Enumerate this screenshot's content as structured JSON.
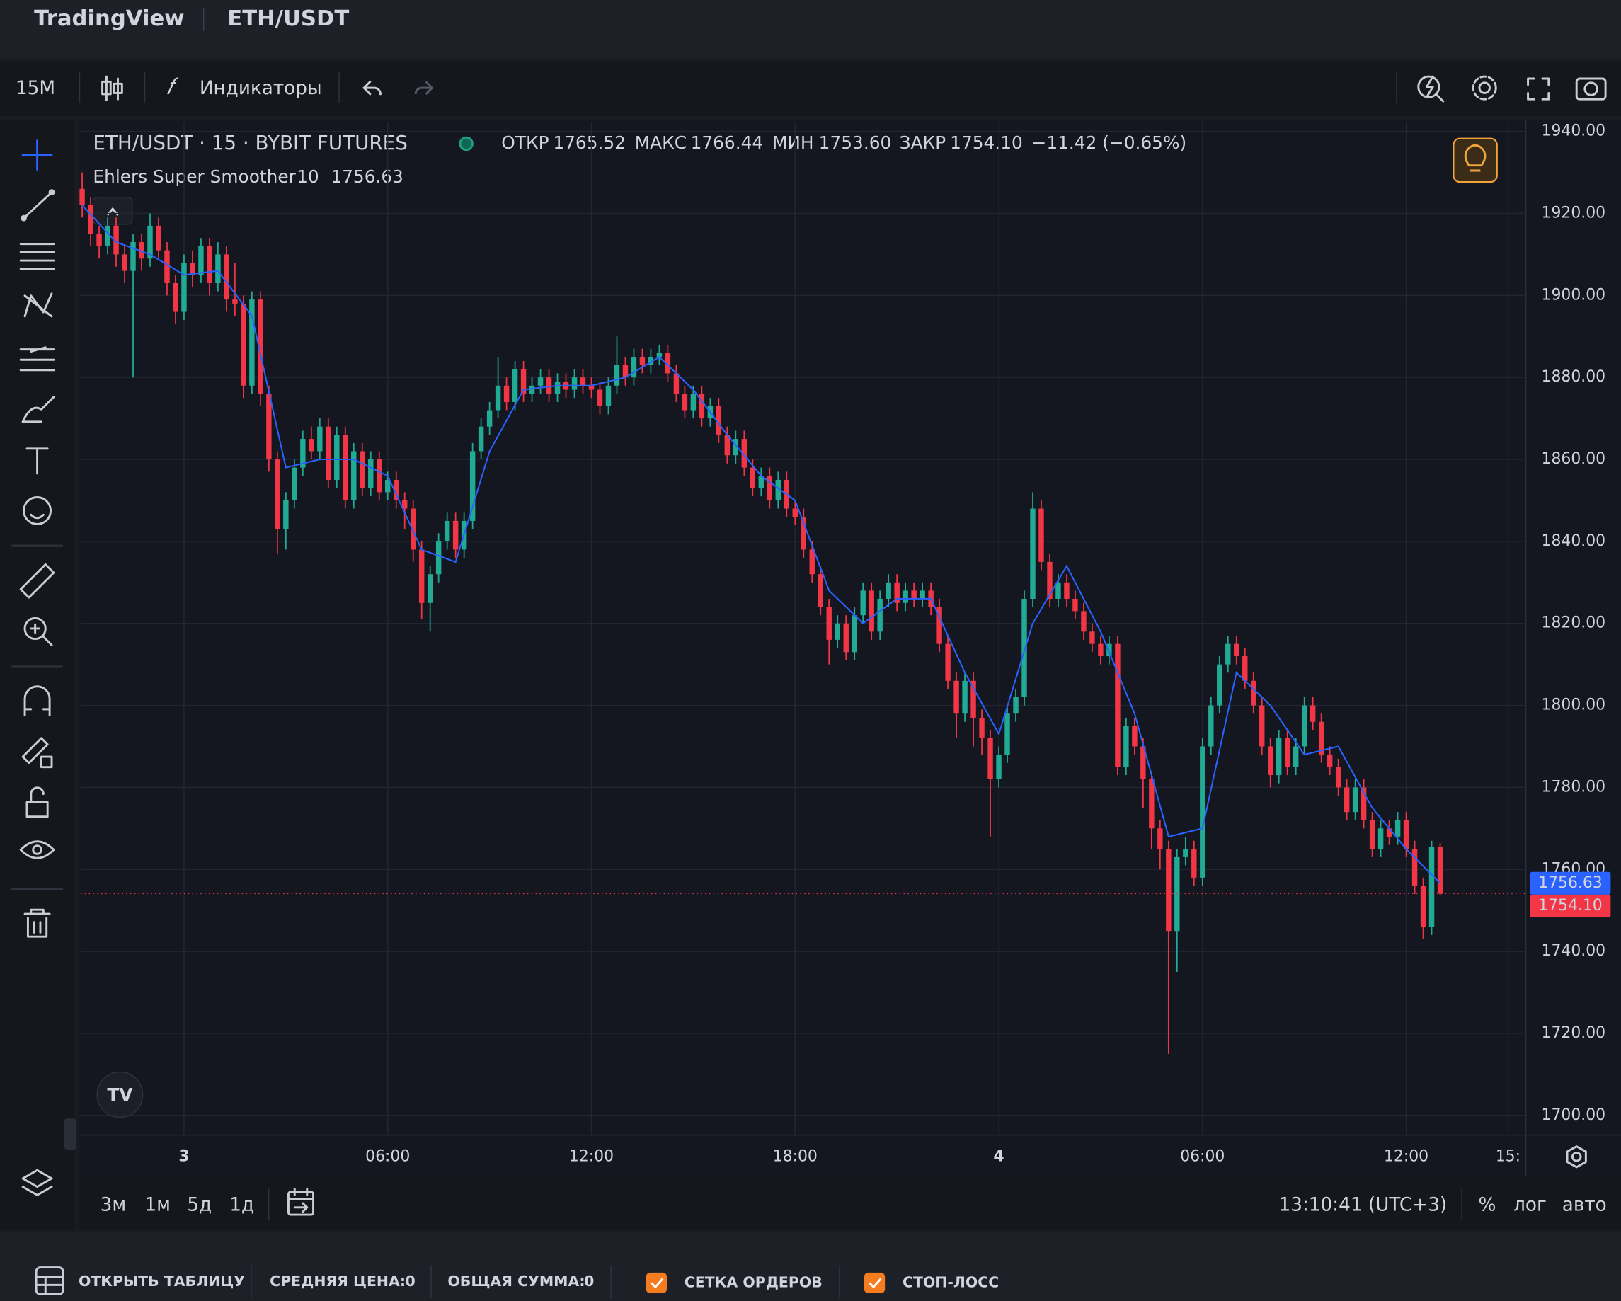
{
  "app": {
    "brand": "TradingView",
    "symbol": "ETH/USDT",
    "interval": "15M",
    "indicators_button": "Индикаторы"
  },
  "chart_data": {
    "type": "candlestick",
    "title": "ETH/USDT · 15 · BYBIT FUTURES",
    "legend_keys": [
      "ОТКР",
      "МАКС",
      "МИН",
      "ЗАКР"
    ],
    "legend_values": [
      "1765.52",
      "1766.44",
      "1753.60",
      "1754.10"
    ],
    "change": "−11.42 (−0.65%)",
    "up_color": "#22ab94",
    "down_color": "#f23645",
    "close_label": "1754.10",
    "xlim": [
      -12.18,
      158.1
    ],
    "ylim": [
      1695.2,
      1942.3
    ],
    "grid": true,
    "xticks": [
      {
        "value": 0,
        "label": "3"
      },
      {
        "value": 24,
        "label": "06:00"
      },
      {
        "value": 48,
        "label": "12:00"
      },
      {
        "value": 72,
        "label": "18:00"
      },
      {
        "value": 96,
        "label": "4"
      },
      {
        "value": 120,
        "label": "06:00"
      },
      {
        "value": 144,
        "label": "12:00"
      },
      {
        "value": 156,
        "label": "15:"
      }
    ],
    "yticks": [
      {
        "value": 1700,
        "label": "1700.00"
      },
      {
        "value": 1720,
        "label": "1720.00"
      },
      {
        "value": 1740,
        "label": "1740.00"
      },
      {
        "value": 1760,
        "label": "1760.00"
      },
      {
        "value": 1780,
        "label": "1780.00"
      },
      {
        "value": 1800,
        "label": "1800.00"
      },
      {
        "value": 1820,
        "label": "1820.00"
      },
      {
        "value": 1840,
        "label": "1840.00"
      },
      {
        "value": 1860,
        "label": "1860.00"
      },
      {
        "value": 1880,
        "label": "1880.00"
      },
      {
        "value": 1900,
        "label": "1900.00"
      },
      {
        "value": 1920,
        "label": "1920.00"
      },
      {
        "value": 1940,
        "label": "1940.00"
      }
    ],
    "x": [
      -12,
      -11,
      -10,
      -9,
      -8,
      -7,
      -6,
      -5,
      -4,
      -3,
      -2,
      -1,
      0,
      1,
      2,
      3,
      4,
      5,
      6,
      7,
      8,
      9,
      10,
      11,
      12,
      13,
      14,
      15,
      16,
      17,
      18,
      19,
      20,
      21,
      22,
      23,
      24,
      25,
      26,
      27,
      28,
      29,
      30,
      31,
      32,
      33,
      34,
      35,
      36,
      37,
      38,
      39,
      40,
      41,
      42,
      43,
      44,
      45,
      46,
      47,
      48,
      49,
      50,
      51,
      52,
      53,
      54,
      55,
      56,
      57,
      58,
      59,
      60,
      61,
      62,
      63,
      64,
      65,
      66,
      67,
      68,
      69,
      70,
      71,
      72,
      73,
      74,
      75,
      76,
      77,
      78,
      79,
      80,
      81,
      82,
      83,
      84,
      85,
      86,
      87,
      88,
      89,
      90,
      91,
      92,
      93,
      94,
      95,
      96,
      97,
      98,
      99,
      100,
      101,
      102,
      103,
      104,
      105,
      106,
      107,
      108,
      109,
      110,
      111,
      112,
      113,
      114,
      115,
      116,
      117,
      118,
      119,
      120,
      121,
      122,
      123,
      124,
      125,
      126,
      127,
      128,
      129,
      130,
      131,
      132,
      133,
      134,
      135,
      136,
      137,
      138,
      139,
      140,
      141,
      142,
      143,
      144,
      145,
      146,
      147,
      148
    ],
    "candles": [
      [
        1926,
        1930,
        1919,
        1922
      ],
      [
        1922,
        1924,
        1912,
        1915
      ],
      [
        1915,
        1917,
        1909,
        1912
      ],
      [
        1912,
        1919,
        1910,
        1917
      ],
      [
        1917,
        1919,
        1907,
        1910
      ],
      [
        1910,
        1912,
        1903,
        1906
      ],
      [
        1906,
        1915,
        1880,
        1913
      ],
      [
        1913,
        1915,
        1906,
        1909
      ],
      [
        1909,
        1920,
        1907,
        1917
      ],
      [
        1917,
        1919,
        1909,
        1911
      ],
      [
        1911,
        1913,
        1900,
        1903
      ],
      [
        1903,
        1905,
        1893,
        1896
      ],
      [
        1896,
        1910,
        1894,
        1908
      ],
      [
        1908,
        1911,
        1902,
        1905
      ],
      [
        1905,
        1914,
        1903,
        1912
      ],
      [
        1912,
        1914,
        1900,
        1903
      ],
      [
        1903,
        1913,
        1901,
        1910
      ],
      [
        1910,
        1912,
        1896,
        1899
      ],
      [
        1899,
        1908,
        1895,
        1898
      ],
      [
        1898,
        1900,
        1875,
        1878
      ],
      [
        1878,
        1901,
        1876,
        1899
      ],
      [
        1899,
        1901,
        1873,
        1876
      ],
      [
        1876,
        1878,
        1857,
        1860
      ],
      [
        1860,
        1862,
        1837,
        1843
      ],
      [
        1843,
        1852,
        1838,
        1850
      ],
      [
        1850,
        1860,
        1848,
        1858
      ],
      [
        1858,
        1867,
        1856,
        1865
      ],
      [
        1865,
        1868,
        1860,
        1862
      ],
      [
        1862,
        1870,
        1860,
        1868
      ],
      [
        1868,
        1870,
        1853,
        1855
      ],
      [
        1855,
        1868,
        1853,
        1866
      ],
      [
        1866,
        1868,
        1848,
        1850
      ],
      [
        1850,
        1864,
        1848,
        1862
      ],
      [
        1862,
        1864,
        1851,
        1853
      ],
      [
        1853,
        1862,
        1851,
        1860
      ],
      [
        1860,
        1862,
        1850,
        1852
      ],
      [
        1852,
        1857,
        1850,
        1855
      ],
      [
        1855,
        1857,
        1848,
        1850
      ],
      [
        1850,
        1852,
        1843,
        1848
      ],
      [
        1848,
        1850,
        1835,
        1838
      ],
      [
        1838,
        1840,
        1821,
        1825
      ],
      [
        1825,
        1834,
        1818,
        1832
      ],
      [
        1832,
        1842,
        1830,
        1840
      ],
      [
        1840,
        1847,
        1838,
        1845
      ],
      [
        1845,
        1847,
        1836,
        1838
      ],
      [
        1838,
        1847,
        1836,
        1845
      ],
      [
        1845,
        1864,
        1843,
        1862
      ],
      [
        1862,
        1870,
        1860,
        1868
      ],
      [
        1868,
        1874,
        1866,
        1872
      ],
      [
        1872,
        1885,
        1870,
        1878
      ],
      [
        1878,
        1880,
        1872,
        1874
      ],
      [
        1874,
        1884,
        1872,
        1882
      ],
      [
        1882,
        1884,
        1874,
        1876
      ],
      [
        1876,
        1880,
        1874,
        1878
      ],
      [
        1878,
        1882,
        1876,
        1880
      ],
      [
        1880,
        1882,
        1874,
        1876
      ],
      [
        1876,
        1881,
        1874,
        1879
      ],
      [
        1879,
        1881,
        1875,
        1877
      ],
      [
        1877,
        1882,
        1875,
        1880
      ],
      [
        1880,
        1882,
        1876,
        1878
      ],
      [
        1878,
        1880,
        1875,
        1877
      ],
      [
        1877,
        1879,
        1871,
        1873
      ],
      [
        1873,
        1880,
        1871,
        1878
      ],
      [
        1878,
        1890,
        1876,
        1883
      ],
      [
        1883,
        1885,
        1878,
        1880
      ],
      [
        1880,
        1887,
        1878,
        1885
      ],
      [
        1885,
        1887,
        1881,
        1883
      ],
      [
        1883,
        1887,
        1881,
        1885
      ],
      [
        1885,
        1888,
        1883,
        1886
      ],
      [
        1886,
        1888,
        1879,
        1881
      ],
      [
        1881,
        1883,
        1874,
        1876
      ],
      [
        1876,
        1878,
        1870,
        1872
      ],
      [
        1872,
        1878,
        1870,
        1876
      ],
      [
        1876,
        1878,
        1868,
        1870
      ],
      [
        1870,
        1875,
        1868,
        1873
      ],
      [
        1873,
        1875,
        1864,
        1866
      ],
      [
        1866,
        1868,
        1859,
        1861
      ],
      [
        1861,
        1867,
        1859,
        1865
      ],
      [
        1865,
        1867,
        1856,
        1858
      ],
      [
        1858,
        1860,
        1851,
        1853
      ],
      [
        1853,
        1858,
        1851,
        1856
      ],
      [
        1856,
        1858,
        1848,
        1850
      ],
      [
        1850,
        1857,
        1848,
        1855
      ],
      [
        1855,
        1857,
        1846,
        1848
      ],
      [
        1848,
        1850,
        1844,
        1846
      ],
      [
        1846,
        1848,
        1836,
        1838
      ],
      [
        1838,
        1840,
        1830,
        1832
      ],
      [
        1832,
        1834,
        1822,
        1824
      ],
      [
        1824,
        1826,
        1810,
        1816
      ],
      [
        1816,
        1822,
        1814,
        1820
      ],
      [
        1820,
        1822,
        1811,
        1813
      ],
      [
        1813,
        1824,
        1811,
        1822
      ],
      [
        1822,
        1830,
        1820,
        1828
      ],
      [
        1828,
        1830,
        1816,
        1818
      ],
      [
        1818,
        1828,
        1816,
        1826
      ],
      [
        1826,
        1832,
        1824,
        1830
      ],
      [
        1830,
        1832,
        1823,
        1825
      ],
      [
        1825,
        1830,
        1823,
        1828
      ],
      [
        1828,
        1830,
        1824,
        1826
      ],
      [
        1826,
        1830,
        1824,
        1828
      ],
      [
        1828,
        1830,
        1822,
        1824
      ],
      [
        1824,
        1826,
        1813,
        1815
      ],
      [
        1815,
        1817,
        1804,
        1806
      ],
      [
        1806,
        1808,
        1792,
        1798
      ],
      [
        1798,
        1808,
        1796,
        1806
      ],
      [
        1806,
        1808,
        1790,
        1797
      ],
      [
        1797,
        1799,
        1788,
        1792
      ],
      [
        1792,
        1794,
        1768,
        1782
      ],
      [
        1782,
        1790,
        1780,
        1788
      ],
      [
        1788,
        1800,
        1786,
        1798
      ],
      [
        1798,
        1804,
        1796,
        1802
      ],
      [
        1802,
        1828,
        1800,
        1826
      ],
      [
        1826,
        1852,
        1824,
        1848
      ],
      [
        1848,
        1850,
        1833,
        1835
      ],
      [
        1835,
        1837,
        1824,
        1826
      ],
      [
        1826,
        1832,
        1824,
        1830
      ],
      [
        1830,
        1832,
        1824,
        1826
      ],
      [
        1826,
        1828,
        1821,
        1823
      ],
      [
        1823,
        1825,
        1816,
        1818
      ],
      [
        1818,
        1820,
        1813,
        1815
      ],
      [
        1815,
        1817,
        1810,
        1812
      ],
      [
        1812,
        1817,
        1810,
        1815
      ],
      [
        1815,
        1817,
        1783,
        1785
      ],
      [
        1785,
        1797,
        1783,
        1795
      ],
      [
        1795,
        1797,
        1788,
        1790
      ],
      [
        1790,
        1792,
        1775,
        1782
      ],
      [
        1782,
        1784,
        1765,
        1770
      ],
      [
        1770,
        1772,
        1760,
        1765
      ],
      [
        1765,
        1767,
        1715,
        1745
      ],
      [
        1745,
        1765,
        1735,
        1763
      ],
      [
        1763,
        1768,
        1761,
        1765
      ],
      [
        1765,
        1767,
        1756,
        1758
      ],
      [
        1758,
        1792,
        1756,
        1790
      ],
      [
        1790,
        1802,
        1788,
        1800
      ],
      [
        1800,
        1812,
        1798,
        1810
      ],
      [
        1810,
        1817,
        1808,
        1815
      ],
      [
        1815,
        1817,
        1810,
        1812
      ],
      [
        1812,
        1814,
        1804,
        1806
      ],
      [
        1806,
        1808,
        1798,
        1800
      ],
      [
        1800,
        1802,
        1788,
        1790
      ],
      [
        1790,
        1792,
        1780,
        1783
      ],
      [
        1783,
        1794,
        1781,
        1792
      ],
      [
        1792,
        1794,
        1783,
        1785
      ],
      [
        1785,
        1792,
        1783,
        1790
      ],
      [
        1790,
        1802,
        1788,
        1800
      ],
      [
        1800,
        1802,
        1794,
        1796
      ],
      [
        1796,
        1798,
        1786,
        1788
      ],
      [
        1788,
        1790,
        1783,
        1785
      ],
      [
        1785,
        1787,
        1778,
        1780
      ],
      [
        1780,
        1782,
        1772,
        1774
      ],
      [
        1774,
        1782,
        1772,
        1780
      ],
      [
        1780,
        1782,
        1770,
        1772
      ],
      [
        1772,
        1774,
        1763,
        1765
      ],
      [
        1765,
        1772,
        1763,
        1770
      ],
      [
        1770,
        1772,
        1766,
        1768
      ],
      [
        1768,
        1774,
        1766,
        1772
      ],
      [
        1772,
        1774,
        1763,
        1765
      ],
      [
        1765,
        1767,
        1754,
        1756
      ],
      [
        1756,
        1758,
        1743,
        1746
      ],
      [
        1746,
        1767,
        1744,
        1765.52
      ],
      [
        1765.52,
        1766.44,
        1753.6,
        1754.1
      ]
    ],
    "indicator": {
      "name": "Ehlers Super Smoother",
      "length": 10,
      "color": "#2962ff",
      "x": [
        -12,
        -8,
        -4,
        0,
        4,
        8,
        12,
        16,
        20,
        24,
        28,
        32,
        36,
        40,
        44,
        48,
        52,
        56,
        60,
        64,
        68,
        72,
        76,
        80,
        84,
        88,
        92,
        96,
        100,
        104,
        108,
        112,
        116,
        120,
        124,
        128,
        132,
        136,
        140,
        144,
        148
      ],
      "values": [
        1922,
        1913,
        1910,
        1905,
        1906,
        1895,
        1858,
        1860,
        1860,
        1856,
        1838,
        1835,
        1862,
        1877,
        1878,
        1878,
        1880,
        1885,
        1877,
        1866,
        1856,
        1850,
        1828,
        1820,
        1826,
        1826,
        1808,
        1793,
        1820,
        1834,
        1818,
        1798,
        1768,
        1770,
        1808,
        1800,
        1788,
        1790,
        1775,
        1765,
        1756.63
      ]
    }
  },
  "bottom_bar": {
    "ranges": [
      "3м",
      "1м",
      "5д",
      "1д"
    ],
    "clock": "13:10:41 (UTC+3)",
    "scale_options": [
      "%",
      "лог",
      "авто"
    ]
  },
  "footer": {
    "open_table": "ОТКРЫТЬ ТАБЛИЦУ",
    "avg_price_label": "СРЕДНЯЯ ЦЕНА:",
    "avg_price": 0,
    "total_label": "ОБЩАЯ СУММА:",
    "total": 0,
    "order_grid": "СЕТКА ОРДЕРОВ",
    "stop_loss": "СТОП-ЛОСС"
  }
}
